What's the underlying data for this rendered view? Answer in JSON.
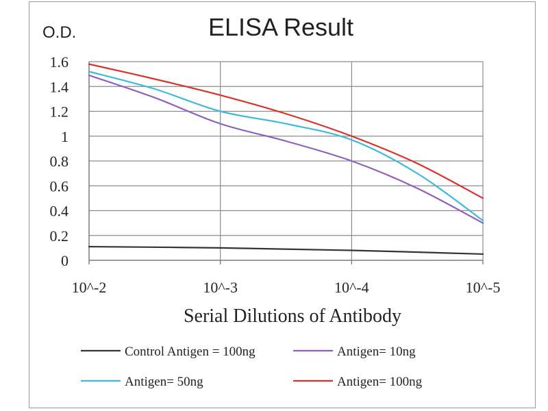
{
  "chart_data": {
    "type": "line",
    "title": "ELISA Result",
    "ylabel": "O.D.",
    "xlabel": "Serial Dilutions  of Antibody",
    "categories": [
      "10^-2",
      "10^-3",
      "10^-4",
      "10^-5"
    ],
    "ylim": [
      0,
      1.6
    ],
    "yticks": [
      0,
      0.2,
      0.4,
      0.6,
      0.8,
      1,
      1.2,
      1.4,
      1.6
    ],
    "ytick_labels": [
      "0",
      "0.2",
      "0.4",
      "0.6",
      "0.8",
      "1",
      "1.2",
      "1.4",
      "1.6"
    ],
    "grid": true,
    "legend_position": "bottom",
    "series": [
      {
        "name": "Control Antigen = 100ng",
        "color": "#333333",
        "x": [
          0,
          1,
          2,
          3
        ],
        "values": [
          0.11,
          0.1,
          0.08,
          0.05
        ]
      },
      {
        "name": "Antigen= 10ng",
        "color": "#8e5fc0",
        "x": [
          0,
          0.5,
          1,
          1.5,
          2,
          2.5,
          3
        ],
        "values": [
          1.49,
          1.31,
          1.1,
          0.96,
          0.8,
          0.58,
          0.3
        ]
      },
      {
        "name": "Antigen= 50ng",
        "color": "#3fb9dd",
        "x": [
          0,
          0.5,
          1,
          1.5,
          2,
          2.5,
          3
        ],
        "values": [
          1.52,
          1.38,
          1.2,
          1.1,
          0.97,
          0.7,
          0.32
        ]
      },
      {
        "name": "Antigen= 100ng",
        "color": "#d9302a",
        "x": [
          0,
          0.5,
          1,
          1.5,
          2,
          2.5,
          3
        ],
        "values": [
          1.58,
          1.46,
          1.33,
          1.18,
          1.0,
          0.78,
          0.5
        ]
      }
    ]
  }
}
